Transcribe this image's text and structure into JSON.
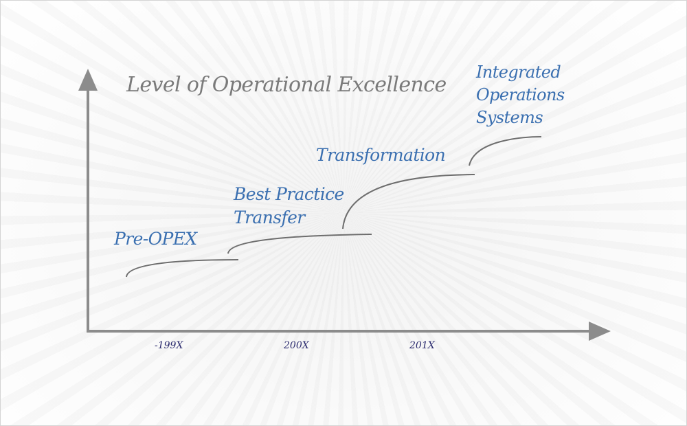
{
  "diagram": {
    "title": "Level of Operational Excellence",
    "stages": [
      {
        "label": "Pre-OPEX"
      },
      {
        "label": "Best Practice\nTransfer"
      },
      {
        "label": "Transformation"
      },
      {
        "label": "Integrated\nOperations\nSystems"
      }
    ],
    "x_axis_ticks": [
      "-199X",
      "200X",
      "201X"
    ]
  }
}
